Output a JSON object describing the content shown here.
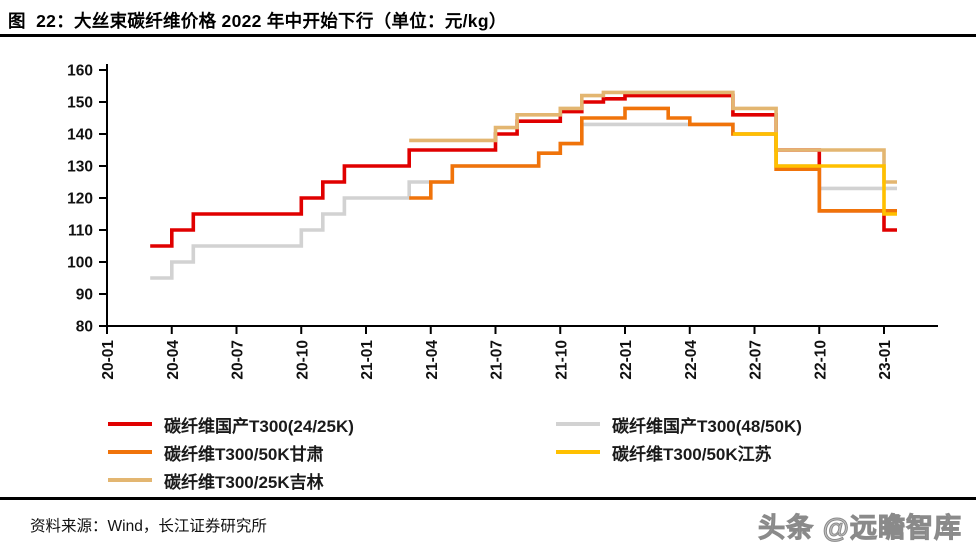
{
  "title": "图  22：大丝束碳纤维价格 2022 年中开始下行（单位：元/kg）",
  "footer": {
    "source": "资料来源：Wind，长江证券研究所",
    "watermark": "头条 @远瞻智库"
  },
  "chart_data": {
    "type": "line",
    "step": true,
    "title": "大丝束碳纤维价格 2022 年中开始下行",
    "unit": "元/kg",
    "xlabel": "",
    "ylabel": "",
    "ylim": [
      80,
      160
    ],
    "y_ticks": [
      80,
      90,
      100,
      110,
      120,
      130,
      140,
      150,
      160
    ],
    "grid": false,
    "legend_position": "bottom",
    "x_tick_every": 3,
    "x": [
      "20-01",
      "20-02",
      "20-03",
      "20-04",
      "20-05",
      "20-06",
      "20-07",
      "20-08",
      "20-09",
      "20-10",
      "20-11",
      "20-12",
      "21-01",
      "21-02",
      "21-03",
      "21-04",
      "21-05",
      "21-06",
      "21-07",
      "21-08",
      "21-09",
      "21-10",
      "21-11",
      "21-12",
      "22-01",
      "22-02",
      "22-03",
      "22-04",
      "22-05",
      "22-06",
      "22-07",
      "22-08",
      "22-09",
      "22-10",
      "22-11",
      "22-12",
      "23-01"
    ],
    "draw_order": [
      1,
      0,
      2,
      4,
      3
    ],
    "series": [
      {
        "id": "guochan-t300-24-25k",
        "name": "碳纤维国产T300(24/25K)",
        "color": "#E00000",
        "values": [
          null,
          null,
          105,
          110,
          115,
          115,
          115,
          115,
          115,
          120,
          125,
          130,
          130,
          130,
          135,
          135,
          135,
          135,
          140,
          144,
          144,
          147,
          150,
          151,
          152,
          152,
          152,
          152,
          152,
          146,
          146,
          135,
          135,
          116,
          116,
          116,
          110
        ]
      },
      {
        "id": "guochan-t300-48-50k",
        "name": "碳纤维国产T300(48/50K)",
        "color": "#D2D2D2",
        "values": [
          null,
          null,
          95,
          100,
          105,
          105,
          105,
          105,
          105,
          110,
          115,
          120,
          120,
          120,
          125,
          125,
          130,
          130,
          130,
          130,
          134,
          137,
          143,
          143,
          143,
          143,
          143,
          143,
          143,
          140,
          140,
          130,
          130,
          123,
          123,
          123,
          123
        ]
      },
      {
        "id": "t300-50k-gansu",
        "name": "碳纤维T300/50K甘肃",
        "color": "#F0730A",
        "values": [
          null,
          null,
          null,
          null,
          null,
          null,
          null,
          null,
          null,
          null,
          null,
          null,
          null,
          null,
          120,
          125,
          130,
          130,
          130,
          130,
          134,
          137,
          145,
          145,
          148,
          148,
          145,
          143,
          143,
          140,
          140,
          129,
          129,
          116,
          116,
          116,
          116
        ]
      },
      {
        "id": "t300-50k-jiangsu",
        "name": "碳纤维T300/50K江苏",
        "color": "#FFC000",
        "values": [
          null,
          null,
          null,
          null,
          null,
          null,
          null,
          null,
          null,
          null,
          null,
          null,
          null,
          null,
          null,
          null,
          null,
          null,
          null,
          null,
          null,
          null,
          null,
          null,
          null,
          null,
          null,
          null,
          null,
          140,
          140,
          130,
          130,
          130,
          130,
          130,
          115
        ]
      },
      {
        "id": "t300-25k-jilin",
        "name": "碳纤维T300/25K吉林",
        "color": "#E3B671",
        "values": [
          null,
          null,
          null,
          null,
          null,
          null,
          null,
          null,
          null,
          null,
          null,
          null,
          null,
          null,
          138,
          138,
          138,
          138,
          142,
          146,
          146,
          148,
          152,
          153,
          153,
          153,
          153,
          153,
          153,
          148,
          148,
          135,
          135,
          135,
          135,
          135,
          125
        ]
      }
    ]
  }
}
